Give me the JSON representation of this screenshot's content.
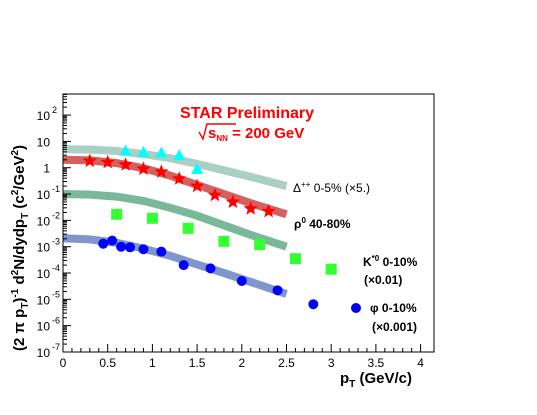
{
  "chart_data": {
    "type": "scatter",
    "title": "STAR Preliminary",
    "subtitle_prefix": "s",
    "subtitle_sub": "NN",
    "subtitle_suffix": " = 200 GeV",
    "xlabel_main": "p",
    "xlabel_sub": "T",
    "xlabel_tail": " (GeV/c)",
    "ylabel_lead": "(2 π p",
    "ylabel_sub1": "T",
    "ylabel_mid": ")",
    "ylabel_sup": "-1",
    "ylabel_mid2": " d",
    "ylabel_sup2": "2",
    "ylabel_mid3": "N/dydp",
    "ylabel_sub3": "T",
    "ylabel_tail": " (c",
    "ylabel_sup3": "2",
    "ylabel_tail2": "/GeV",
    "ylabel_sup4": "2",
    "ylabel_tail3": ")",
    "xlim": [
      0,
      4.15
    ],
    "ylim_log10": [
      -7,
      2.8
    ],
    "y_scale": "log",
    "x_ticks": [
      "0",
      "0.5",
      "1",
      "1.5",
      "2",
      "2.5",
      "3",
      "3.5",
      "4"
    ],
    "y_ticks": [
      {
        "base": "10",
        "exp": "-7"
      },
      {
        "base": "10",
        "exp": "-6"
      },
      {
        "base": "10",
        "exp": "-5"
      },
      {
        "base": "10",
        "exp": "-4"
      },
      {
        "base": "10",
        "exp": "-3"
      },
      {
        "base": "10",
        "exp": "-2"
      },
      {
        "base": "10",
        "exp": "-1"
      },
      {
        "base": "1",
        "exp": ""
      },
      {
        "base": "10",
        "exp": ""
      },
      {
        "base": "10",
        "exp": "2"
      }
    ],
    "series": [
      {
        "label_main": "Δ",
        "label_sup": "++",
        "label_tail": " 0-5% (×5.)",
        "label_tail2": "",
        "marker": "triangle",
        "marker_color": "#00ffff",
        "band_color": "#aacfc4",
        "x": [
          0.7,
          0.9,
          1.1,
          1.3,
          1.5
        ],
        "y": [
          4.5,
          4.0,
          3.8,
          3.0,
          0.9
        ],
        "band_x": [
          0,
          0.3,
          0.6,
          0.9,
          1.2,
          1.5,
          1.8,
          2.1,
          2.5
        ],
        "band_y": [
          5.0,
          4.9,
          4.3,
          3.3,
          2.3,
          1.4,
          0.8,
          0.45,
          0.2
        ]
      },
      {
        "label_main": "ρ",
        "label_sup": "0",
        "label_tail": " 40-80%",
        "label_tail2": "",
        "marker": "star",
        "marker_color": "#ff0000",
        "band_color": "#d46060",
        "x": [
          0.3,
          0.5,
          0.7,
          0.9,
          1.1,
          1.3,
          1.5,
          1.7,
          1.9,
          2.1,
          2.3
        ],
        "y": [
          1.8,
          1.6,
          1.3,
          0.9,
          0.7,
          0.38,
          0.2,
          0.09,
          0.05,
          0.028,
          0.022
        ],
        "band_x": [
          0,
          0.3,
          0.6,
          0.9,
          1.2,
          1.5,
          1.8,
          2.1,
          2.5
        ],
        "band_y": [
          2.0,
          1.9,
          1.5,
          0.95,
          0.5,
          0.22,
          0.1,
          0.045,
          0.017
        ]
      },
      {
        "label_main": "K",
        "label_sup": "*0",
        "label_tail": " 0-10%",
        "label_tail2": "(×0.01)",
        "marker": "square",
        "marker_color": "#33ff33",
        "band_color": "#7ab89a",
        "x": [
          0.6,
          1.0,
          1.4,
          1.8,
          2.2,
          2.6,
          3.0
        ],
        "y": [
          0.017,
          0.012,
          0.005,
          0.0016,
          0.0012,
          0.00035,
          0.00014
        ],
        "band_x": [
          0,
          0.3,
          0.6,
          0.9,
          1.2,
          1.5,
          1.8,
          2.1,
          2.5
        ],
        "band_y": [
          0.1,
          0.095,
          0.08,
          0.055,
          0.03,
          0.015,
          0.0065,
          0.0028,
          0.001
        ]
      },
      {
        "label_main": "φ",
        "label_sup": "",
        "label_tail": " 0-10%",
        "label_tail2": "(×0.001)",
        "marker": "circle",
        "marker_color": "#0000ff",
        "band_color": "#7f95cc",
        "x": [
          0.45,
          0.55,
          0.65,
          0.75,
          0.9,
          1.1,
          1.35,
          1.65,
          2.0,
          2.4,
          2.8
        ],
        "y": [
          0.0013,
          0.0017,
          0.001,
          0.00095,
          0.0008,
          0.00065,
          0.0002,
          0.00015,
          5e-05,
          2.2e-05,
          6.5e-06
        ],
        "band_x": [
          0,
          0.3,
          0.6,
          0.9,
          1.2,
          1.5,
          1.8,
          2.1,
          2.5
        ],
        "band_y": [
          0.0021,
          0.0019,
          0.0014,
          0.00085,
          0.00045,
          0.00021,
          0.0001,
          4.6e-05,
          1.6e-05
        ]
      }
    ]
  }
}
